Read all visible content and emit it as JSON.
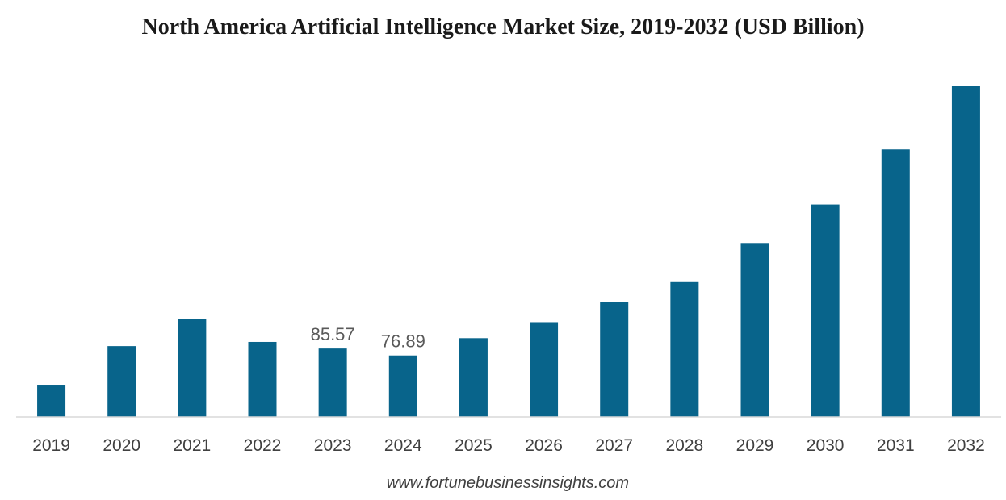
{
  "colors": {
    "bar": "#08648b",
    "axis": "#d9d9d9"
  },
  "chart_data": {
    "type": "bar",
    "title": "North America Artificial Intelligence Market Size, 2019-2032 (USD Billion)",
    "xlabel": "",
    "ylabel": "",
    "categories": [
      "2019",
      "2020",
      "2021",
      "2022",
      "2023",
      "2024",
      "2025",
      "2026",
      "2027",
      "2028",
      "2029",
      "2030",
      "2031",
      "2032"
    ],
    "values": [
      39.3,
      88.6,
      122.8,
      93.8,
      85.57,
      76.89,
      98.5,
      118.5,
      143.7,
      168.6,
      217.5,
      265.6,
      334.5,
      413.4
    ],
    "data_labels": [
      null,
      null,
      null,
      null,
      "85.57",
      "76.89",
      null,
      null,
      null,
      null,
      null,
      null,
      null,
      null
    ],
    "ylim": [
      0,
      413.4
    ],
    "grid": false,
    "legend": "none"
  },
  "footer": {
    "source": "www.fortunebusinessinsights.com"
  }
}
